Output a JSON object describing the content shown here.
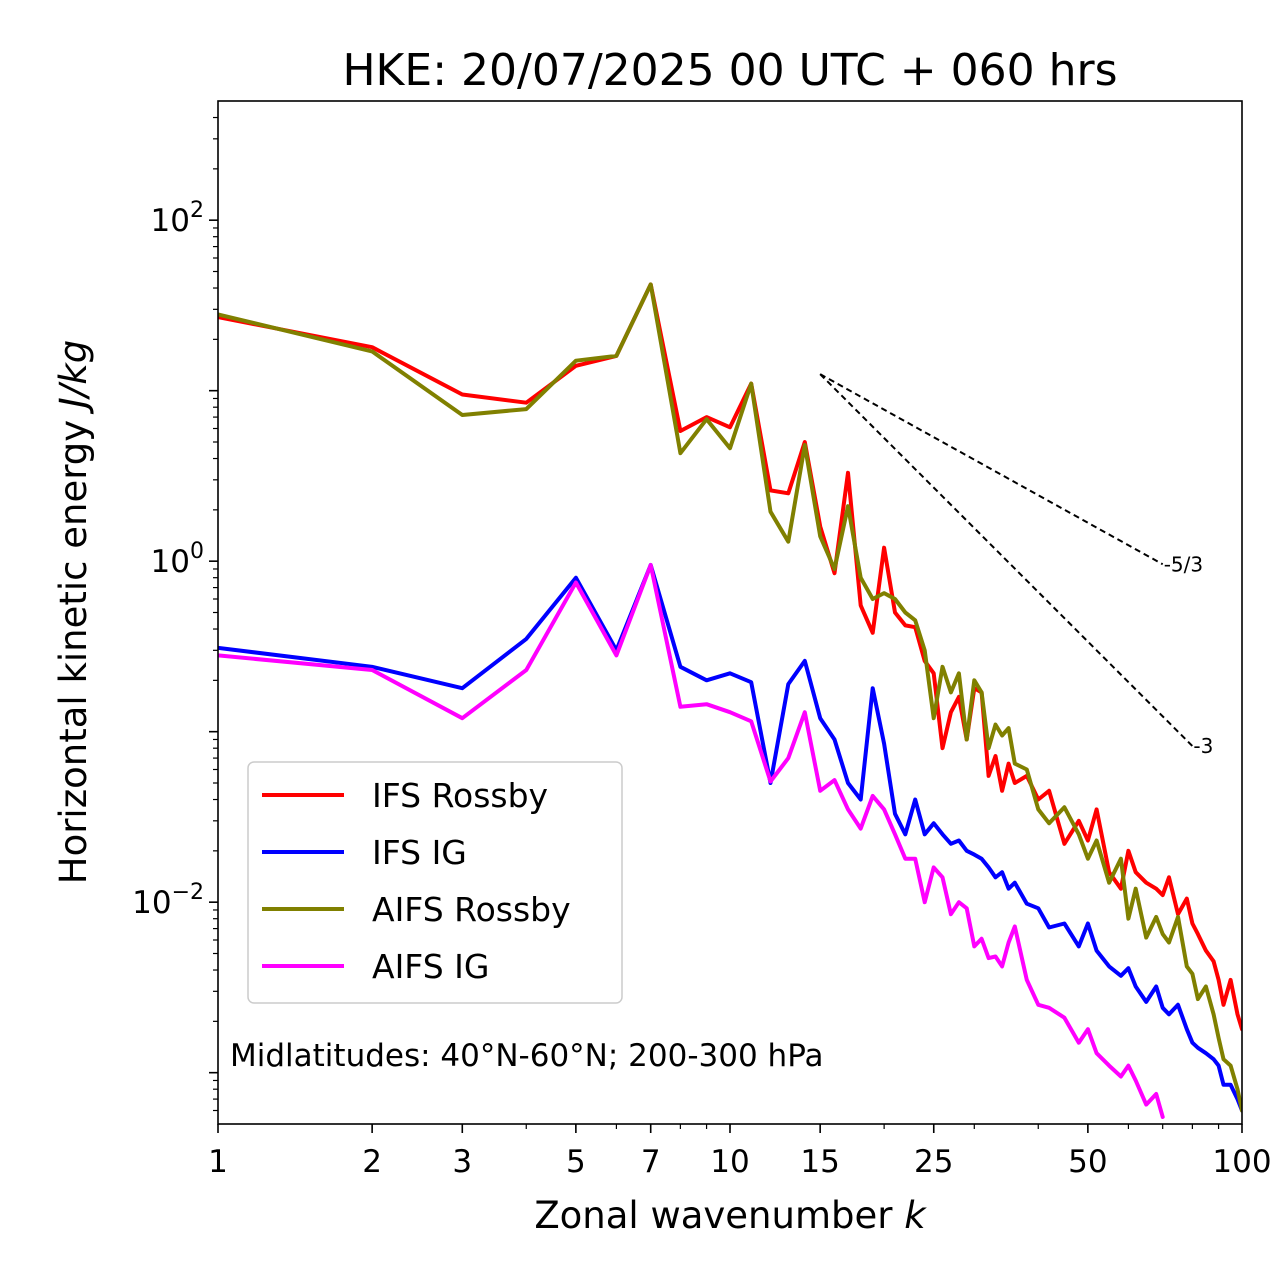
{
  "chart_data": {
    "type": "line",
    "title": "HKE: 20/07/2025 00 UTC + 060 hrs",
    "xlabel": "Zonal wavenumber",
    "xlabel_symbol": "k",
    "ylabel": "Horizontal kinetic energy",
    "ylabel_units": "J/kg",
    "xscale": "log",
    "yscale": "log",
    "xlim": [
      1,
      100
    ],
    "ylim": [
      0.0005,
      500
    ],
    "xticks": [
      1,
      2,
      3,
      5,
      7,
      10,
      15,
      25,
      50,
      100
    ],
    "xtick_labels": [
      "1",
      "2",
      "3",
      "5",
      "7",
      "10",
      "15",
      "25",
      "50",
      "100"
    ],
    "yticks": [
      {
        "value": 100,
        "base": "10",
        "exp": "2"
      },
      {
        "value": 1,
        "base": "10",
        "exp": "0"
      },
      {
        "value": 0.01,
        "base": "10",
        "exp": "−2"
      }
    ],
    "annotation": "Midlatitudes: 40°N-60°N; 200-300 hPa",
    "legend_position": "lower-left",
    "reference_lines": [
      {
        "label": "-5/3",
        "slope": -1.6667,
        "x_start": 15,
        "y_start": 12.5,
        "x_end": 70
      },
      {
        "label": "-3",
        "slope": -3,
        "x_start": 15,
        "y_start": 12.5,
        "x_end": 80
      }
    ],
    "series": [
      {
        "name": "IFS Rossby",
        "color": "#ff0000",
        "x": [
          1,
          2,
          3,
          4,
          5,
          6,
          7,
          8,
          9,
          10,
          11,
          12,
          13,
          14,
          15,
          16,
          17,
          18,
          19,
          20,
          21,
          22,
          23,
          24,
          25,
          26,
          27,
          28,
          29,
          30,
          31,
          32,
          33,
          34,
          35,
          36,
          38,
          40,
          42,
          45,
          48,
          50,
          52,
          55,
          58,
          60,
          62,
          65,
          68,
          70,
          72,
          75,
          78,
          80,
          82,
          85,
          88,
          90,
          92,
          95,
          98,
          100
        ],
        "values": [
          27,
          18,
          9.5,
          8.5,
          14,
          16,
          42,
          5.8,
          7,
          6.1,
          11,
          2.6,
          2.5,
          5,
          1.6,
          0.85,
          3.3,
          0.55,
          0.38,
          1.2,
          0.5,
          0.42,
          0.41,
          0.26,
          0.22,
          0.08,
          0.13,
          0.16,
          0.09,
          0.18,
          0.17,
          0.055,
          0.072,
          0.045,
          0.065,
          0.05,
          0.055,
          0.04,
          0.045,
          0.022,
          0.03,
          0.023,
          0.035,
          0.015,
          0.012,
          0.02,
          0.015,
          0.013,
          0.012,
          0.011,
          0.014,
          0.0085,
          0.0105,
          0.0075,
          0.0065,
          0.0052,
          0.0045,
          0.0035,
          0.0025,
          0.0035,
          0.0022,
          0.0018
        ]
      },
      {
        "name": "IFS IG",
        "color": "#0000ff",
        "x": [
          1,
          2,
          3,
          4,
          5,
          6,
          7,
          8,
          9,
          10,
          11,
          12,
          13,
          14,
          15,
          16,
          17,
          18,
          19,
          20,
          21,
          22,
          23,
          24,
          25,
          26,
          27,
          28,
          29,
          30,
          31,
          32,
          33,
          34,
          35,
          36,
          38,
          40,
          42,
          45,
          48,
          50,
          52,
          55,
          58,
          60,
          62,
          65,
          68,
          70,
          72,
          75,
          78,
          80,
          82,
          85,
          88,
          90,
          92,
          95,
          98,
          100
        ],
        "values": [
          0.31,
          0.24,
          0.18,
          0.35,
          0.8,
          0.3,
          0.95,
          0.24,
          0.2,
          0.22,
          0.195,
          0.05,
          0.19,
          0.26,
          0.12,
          0.09,
          0.05,
          0.04,
          0.18,
          0.085,
          0.033,
          0.025,
          0.04,
          0.025,
          0.029,
          0.025,
          0.022,
          0.023,
          0.02,
          0.019,
          0.018,
          0.016,
          0.014,
          0.015,
          0.012,
          0.013,
          0.0098,
          0.0092,
          0.0071,
          0.0075,
          0.0055,
          0.0075,
          0.0052,
          0.0042,
          0.0037,
          0.0041,
          0.0032,
          0.0026,
          0.0032,
          0.0024,
          0.0022,
          0.0025,
          0.0018,
          0.0015,
          0.0014,
          0.0013,
          0.0012,
          0.0011,
          0.00085,
          0.00085,
          0.0007,
          0.0006
        ]
      },
      {
        "name": "AIFS Rossby",
        "color": "#808000",
        "x": [
          1,
          2,
          3,
          4,
          5,
          6,
          7,
          8,
          9,
          10,
          11,
          12,
          13,
          14,
          15,
          16,
          17,
          18,
          19,
          20,
          21,
          22,
          23,
          24,
          25,
          26,
          27,
          28,
          29,
          30,
          31,
          32,
          33,
          34,
          35,
          36,
          38,
          40,
          42,
          45,
          48,
          50,
          52,
          55,
          58,
          60,
          62,
          65,
          68,
          70,
          72,
          75,
          78,
          80,
          82,
          85,
          88,
          90,
          92,
          95,
          98,
          100
        ],
        "values": [
          28,
          17,
          7.2,
          7.8,
          15,
          16,
          42,
          4.3,
          6.8,
          4.6,
          11,
          1.95,
          1.3,
          4.8,
          1.4,
          0.9,
          2.1,
          0.8,
          0.6,
          0.65,
          0.6,
          0.5,
          0.45,
          0.3,
          0.12,
          0.24,
          0.17,
          0.22,
          0.09,
          0.2,
          0.17,
          0.08,
          0.11,
          0.095,
          0.105,
          0.065,
          0.06,
          0.035,
          0.029,
          0.036,
          0.025,
          0.018,
          0.023,
          0.013,
          0.018,
          0.008,
          0.012,
          0.0062,
          0.0082,
          0.0065,
          0.0058,
          0.0082,
          0.0042,
          0.0038,
          0.0027,
          0.0032,
          0.0022,
          0.0016,
          0.0012,
          0.0011,
          0.0008,
          0.0006
        ]
      },
      {
        "name": "AIFS IG",
        "color": "#ff00ff",
        "x": [
          1,
          2,
          3,
          4,
          5,
          6,
          7,
          8,
          9,
          10,
          11,
          12,
          13,
          14,
          15,
          16,
          17,
          18,
          19,
          20,
          21,
          22,
          23,
          24,
          25,
          26,
          27,
          28,
          29,
          30,
          31,
          32,
          33,
          34,
          35,
          36,
          38,
          40,
          42,
          45,
          48,
          50,
          52,
          55,
          58,
          60,
          62,
          65,
          68,
          70
        ],
        "values": [
          0.28,
          0.23,
          0.12,
          0.23,
          0.75,
          0.28,
          0.95,
          0.14,
          0.145,
          0.13,
          0.115,
          0.051,
          0.07,
          0.13,
          0.045,
          0.052,
          0.035,
          0.027,
          0.042,
          0.035,
          0.025,
          0.018,
          0.018,
          0.01,
          0.016,
          0.014,
          0.0085,
          0.01,
          0.0092,
          0.0055,
          0.0061,
          0.0047,
          0.0048,
          0.0042,
          0.0058,
          0.0072,
          0.0035,
          0.0025,
          0.0024,
          0.0021,
          0.0015,
          0.0018,
          0.0013,
          0.0011,
          0.00095,
          0.0011,
          0.0009,
          0.00065,
          0.00075,
          0.00055
        ]
      }
    ]
  }
}
